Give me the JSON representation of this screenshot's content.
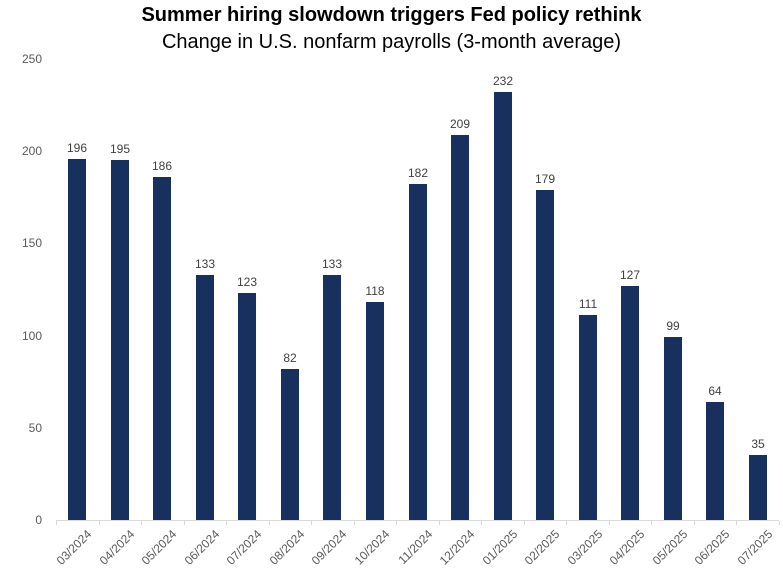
{
  "chart_data": {
    "type": "bar",
    "title": "Summer hiring slowdown triggers Fed policy rethink",
    "subtitle": "Change in U.S. nonfarm payrolls (3-month average)",
    "categories": [
      "03/2024",
      "04/2024",
      "05/2024",
      "06/2024",
      "07/2024",
      "08/2024",
      "09/2024",
      "10/2024",
      "11/2024",
      "12/2024",
      "01/2025",
      "02/2025",
      "03/2025",
      "04/2025",
      "05/2025",
      "06/2025",
      "07/2025"
    ],
    "values": [
      196,
      195,
      186,
      133,
      123,
      82,
      133,
      118,
      182,
      209,
      232,
      179,
      111,
      127,
      99,
      64,
      35
    ],
    "xlabel": "",
    "ylabel": "",
    "ylim": [
      0,
      250
    ],
    "yticks": [
      0,
      50,
      100,
      150,
      200,
      250
    ],
    "data_labels_shown": true,
    "gridlines": false,
    "legend": "none",
    "colors": {
      "bar": "#17305e",
      "data_label": "#404040",
      "axis_tick_label": "#595959",
      "axis_line": "#d9d9d9",
      "title": "#000000",
      "background": "#ffffff"
    }
  }
}
